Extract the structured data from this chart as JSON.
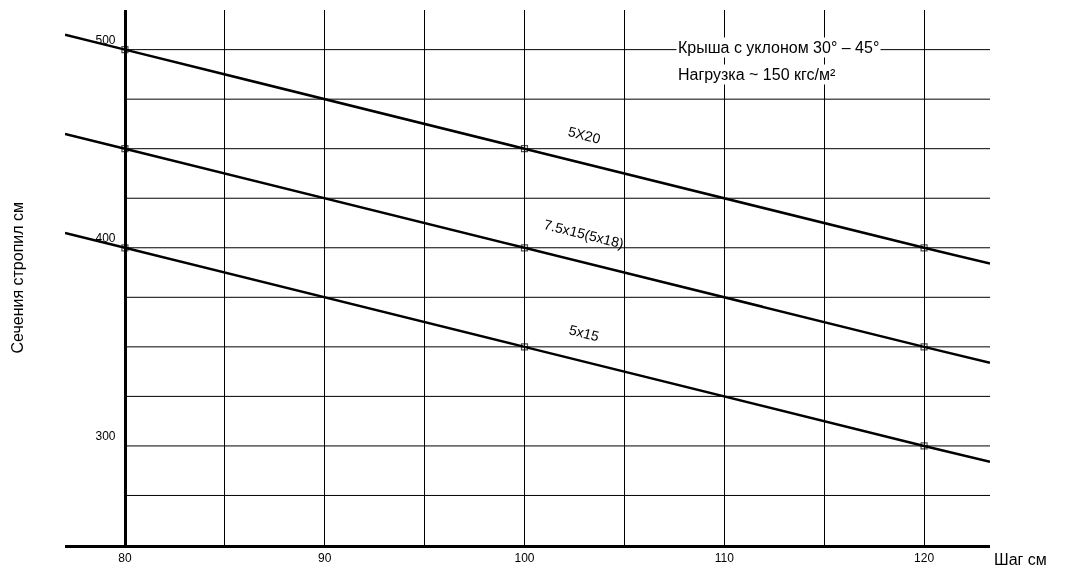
{
  "chart_data": {
    "type": "line",
    "xlabel": "Шаг см",
    "ylabel": "Сечения стропил см",
    "series": [
      {
        "name": "5X20",
        "color": "#000000",
        "x": [
          77,
          80,
          100,
          120,
          123.3
        ],
        "values": [
          507.5,
          500,
          450,
          400,
          392
        ]
      },
      {
        "name": "7.5x15(5x18)",
        "color": "#000000",
        "x": [
          77,
          80,
          100,
          120,
          123.3
        ],
        "values": [
          457.5,
          450,
          400,
          350,
          342
        ]
      },
      {
        "name": "5x15",
        "color": "#000000",
        "x": [
          77,
          80,
          100,
          120,
          123.3
        ],
        "values": [
          407.5,
          400,
          350,
          300,
          292
        ]
      }
    ],
    "annotations": [
      "Крыша с уклоном 30° – 45°",
      "Нагрузка ~ 150 кгс/м²"
    ],
    "xlim": [
      77,
      123.3
    ],
    "ylim": [
      250,
      520
    ],
    "xticks": [
      80,
      {
        "value": 85,
        "label": null
      },
      90,
      {
        "value": 95,
        "label": null
      },
      100,
      {
        "value": 105,
        "label": null
      },
      110,
      {
        "value": 115,
        "label": null
      },
      120
    ],
    "yticks": [
      {
        "value": 275,
        "label": null
      },
      300,
      {
        "value": 325,
        "label": null
      },
      {
        "value": 350,
        "label": null
      },
      {
        "value": 375,
        "label": null
      },
      400,
      {
        "value": 425,
        "label": null
      },
      {
        "value": 450,
        "label": null
      },
      {
        "value": 475,
        "label": null
      },
      500
    ],
    "grid": true,
    "marker": "square",
    "line_style": "solid",
    "legend": false
  }
}
